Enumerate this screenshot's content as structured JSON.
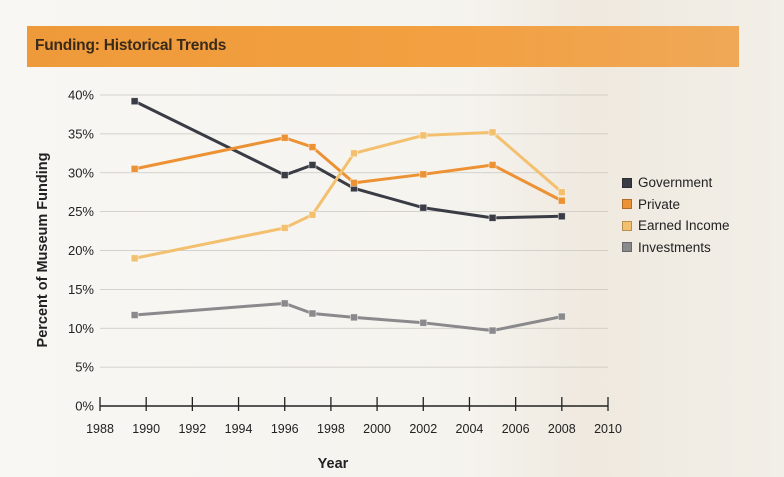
{
  "banner": {
    "title": "Funding: Historical Trends"
  },
  "colors": {
    "banner": "#f09c3c",
    "government": "#3a3c45",
    "private": "#ec9234",
    "earned_income": "#f3c06f",
    "investments": "#8a8a8d"
  },
  "chart_data": {
    "type": "line",
    "title": "",
    "xlabel": "Year",
    "ylabel": "Percent of Museum Funding",
    "xlim": [
      1988,
      2010
    ],
    "ylim": [
      0,
      40
    ],
    "xticks": [
      "1988",
      "1990",
      "1992",
      "1994",
      "1996",
      "1998",
      "2000",
      "2002",
      "2004",
      "2006",
      "2008",
      "2010"
    ],
    "yticks": [
      "0%",
      "5%",
      "10%",
      "15%",
      "20%",
      "25%",
      "30%",
      "35%",
      "40%"
    ],
    "legend_position": "right",
    "series": [
      {
        "name": "Government",
        "key": "government",
        "x": [
          1989.5,
          1996,
          1997.2,
          1999,
          2002,
          2005,
          2008
        ],
        "y": [
          39.2,
          29.7,
          31.0,
          28.0,
          25.5,
          24.2,
          24.4
        ]
      },
      {
        "name": "Private",
        "key": "private",
        "x": [
          1989.5,
          1996,
          1997.2,
          1999,
          2002,
          2005,
          2008
        ],
        "y": [
          30.5,
          34.5,
          33.3,
          28.7,
          29.8,
          31.0,
          26.4
        ]
      },
      {
        "name": "Earned Income",
        "key": "earned_income",
        "x": [
          1989.5,
          1996,
          1997.2,
          1999,
          2002,
          2005,
          2008
        ],
        "y": [
          19.0,
          22.9,
          24.6,
          32.5,
          34.8,
          35.2,
          27.5
        ]
      },
      {
        "name": "Investments",
        "key": "investments",
        "x": [
          1989.5,
          1996,
          1997.2,
          1999,
          2002,
          2005,
          2008
        ],
        "y": [
          11.7,
          13.2,
          11.9,
          11.4,
          10.7,
          9.7,
          11.5
        ]
      }
    ]
  }
}
